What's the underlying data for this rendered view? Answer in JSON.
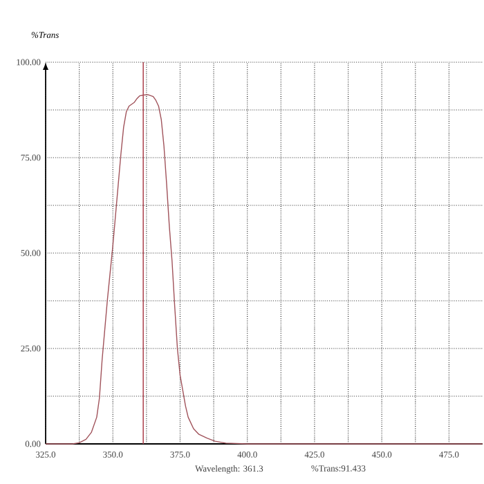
{
  "chart_data": {
    "type": "line",
    "ylabel": "%Trans",
    "annotations": [
      "Wavelength: 361.3",
      "%Trans:91.433"
    ],
    "x": [
      325,
      335,
      337.5,
      340,
      342,
      344,
      345,
      346,
      347,
      348,
      349,
      350,
      351,
      352,
      353,
      354,
      355,
      356,
      357,
      358,
      359,
      360,
      361.3,
      363,
      365,
      366,
      367,
      368,
      369,
      370,
      371,
      372,
      373,
      374,
      375,
      376,
      377,
      378,
      380,
      382,
      385,
      388,
      392,
      400,
      487.5
    ],
    "series": [
      {
        "color": "#a0525a",
        "values": [
          0,
          0,
          0.3,
          1.2,
          3,
          7,
          12,
          22,
          30,
          38,
          45,
          52,
          60,
          68,
          76,
          83,
          87,
          88.5,
          89,
          89.5,
          90.5,
          91.2,
          91.4,
          91.5,
          91,
          90,
          88.5,
          85,
          78,
          68,
          57,
          48,
          36,
          25,
          18,
          14,
          10,
          7,
          4,
          2.5,
          1.5,
          0.7,
          0.2,
          0,
          0
        ]
      }
    ],
    "xlim": [
      325,
      487.5
    ],
    "ylim": [
      0,
      100
    ],
    "xticks": [
      {
        "value": 325,
        "label": "325.0"
      },
      {
        "value": 337.5,
        "label": null
      },
      {
        "value": 350,
        "label": "350.0"
      },
      {
        "value": 362.5,
        "label": null
      },
      {
        "value": 375,
        "label": "375.0"
      },
      {
        "value": 387.5,
        "label": null
      },
      {
        "value": 400,
        "label": "400.0"
      },
      {
        "value": 412.5,
        "label": null
      },
      {
        "value": 425,
        "label": "425.0"
      },
      {
        "value": 437.5,
        "label": null
      },
      {
        "value": 450,
        "label": "450.0"
      },
      {
        "value": 462.5,
        "label": null
      },
      {
        "value": 475,
        "label": "475.0"
      }
    ],
    "yticks": [
      {
        "value": 0,
        "label": "0.00"
      },
      {
        "value": 12.5,
        "label": null
      },
      {
        "value": 25,
        "label": "25.00"
      },
      {
        "value": 37.5,
        "label": null
      },
      {
        "value": 50,
        "label": "50.00"
      },
      {
        "value": 62.5,
        "label": null
      },
      {
        "value": 75,
        "label": "75.00"
      },
      {
        "value": 87.5,
        "label": null
      },
      {
        "value": 100,
        "label": "100.00"
      }
    ],
    "ref_lines": [
      {
        "axis": "x",
        "value": 361.3,
        "color": "#b04a55"
      }
    ],
    "grid": true,
    "marker": "none",
    "line_style": "solid"
  }
}
